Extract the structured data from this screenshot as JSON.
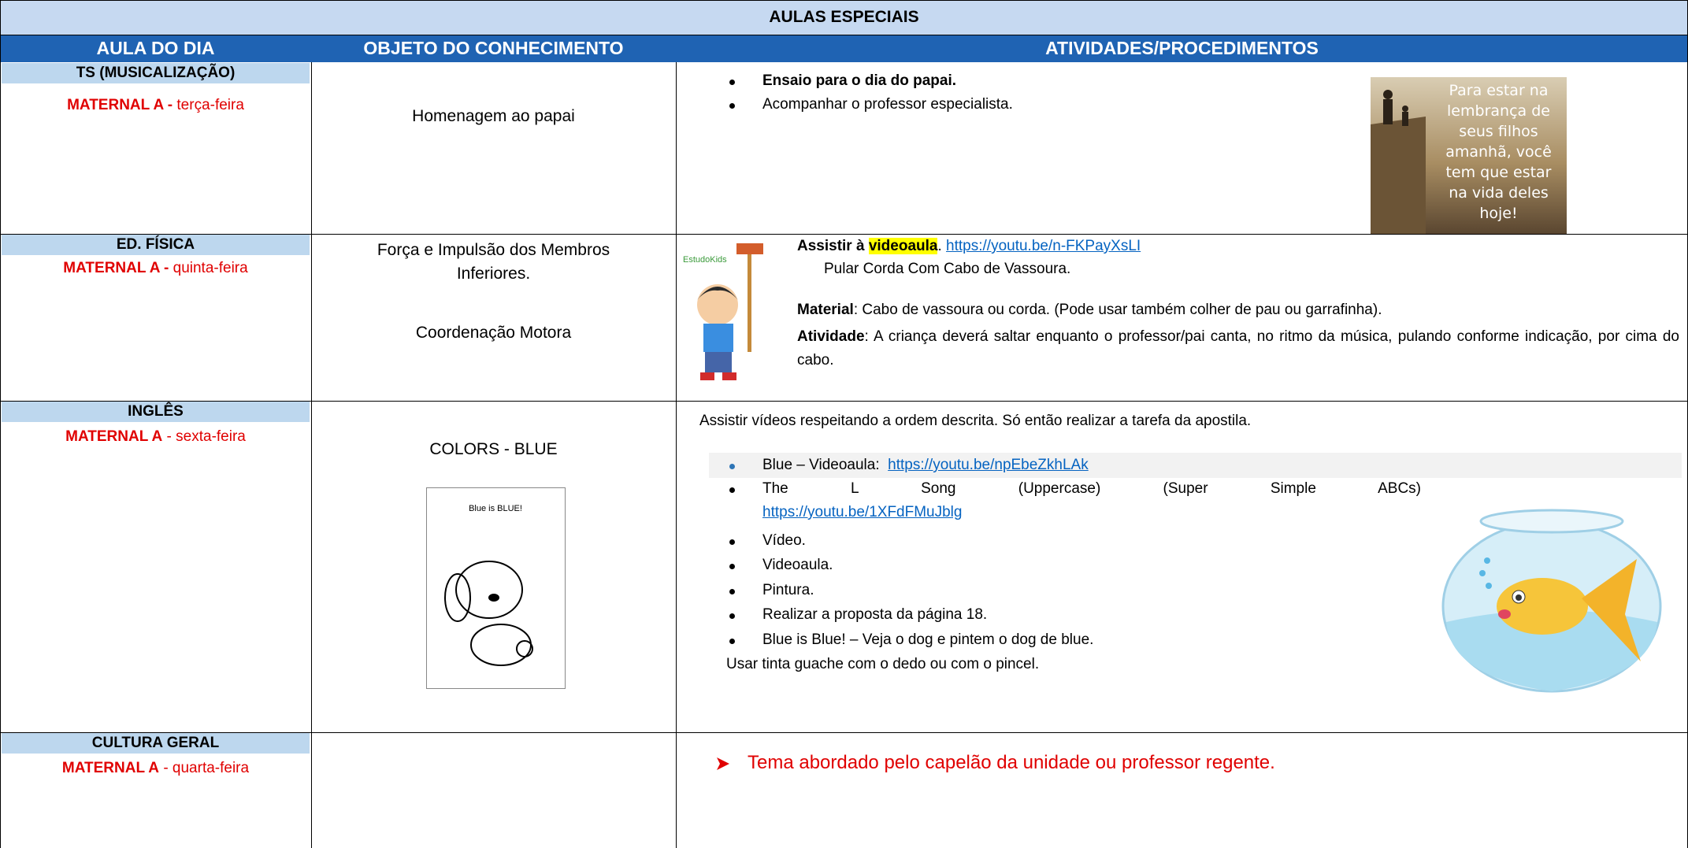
{
  "table": {
    "title": "AULAS ESPECIAIS",
    "headers": [
      "AULA DO DIA",
      "OBJETO DO CONHECIMENTO",
      "ATIVIDADES/PROCEDIMENTOS"
    ],
    "rows": [
      {
        "subject": "TS (MUSICALIZAÇÃO)",
        "group": "MATERNAL A -",
        "day": "terça-feira",
        "knowledge": [
          "Homenagem ao papai"
        ],
        "bullets": [
          "Ensaio para o dia do papai.",
          "Acompanhar o professor especialista."
        ],
        "image_text": [
          "Para estar na",
          "lembrança de",
          "seus filhos",
          "amanhã, você",
          "tem que estar",
          "na vida deles",
          "hoje!"
        ]
      },
      {
        "subject": "ED. FÍSICA",
        "group": "MATERNAL A -",
        "day": "quinta-feira",
        "knowledge": [
          "Força e Impulsão dos Membros",
          "Inferiores.",
          "Coordenação Motora"
        ],
        "intro": "Assistir à",
        "highlight": "videoaula",
        "after_highlight": ".",
        "link": "https://youtu.be/n-FKPayXsLI",
        "subtitle": "Pular Corda Com Cabo de Vassoura.",
        "material_label": "Material",
        "material": ": Cabo de vassoura ou corda. (Pode usar também colher de pau ou garrafinha).",
        "activity_label": "Atividade",
        "activity": ":  A criança deverá saltar enquanto o professor/pai canta, no ritmo da música, pulando conforme indicação, por cima do cabo.",
        "image_text": [
          "EstudoKids"
        ]
      },
      {
        "subject": "INGLÊS",
        "group": "MATERNAL A",
        "day": "- sexta-feira",
        "knowledge": [
          "COLORS - BLUE"
        ],
        "intro": "Assistir vídeos respeitando a ordem descrita. Só então realizar a tarefa da apostila.",
        "bullets": [
          {
            "text": "Blue – Videoaula:",
            "link": "https://youtu.be/npEbeZkhLAk"
          },
          {
            "text": "The L Song (Uppercase) (Super Simple ABCs)",
            "link": "https://youtu.be/1XFdFMuJblg"
          },
          {
            "text": "Vídeo."
          },
          {
            "text": "Videoaula."
          },
          {
            "text": "Pintura."
          },
          {
            "text": "Realizar a proposta da página 18."
          },
          {
            "text": "Blue is Blue! – Veja o dog e pintem o dog de blue."
          }
        ],
        "outro": "Usar tinta guache com o dedo ou com o pincel.",
        "image_text": [
          "Blue is BLUE!"
        ]
      },
      {
        "subject": "CULTURA GERAL",
        "group": "MATERNAL A",
        "day": "- quarta-feira",
        "bullets": [
          "Tema abordado pelo capelão da unidade ou professor regente."
        ]
      }
    ]
  }
}
